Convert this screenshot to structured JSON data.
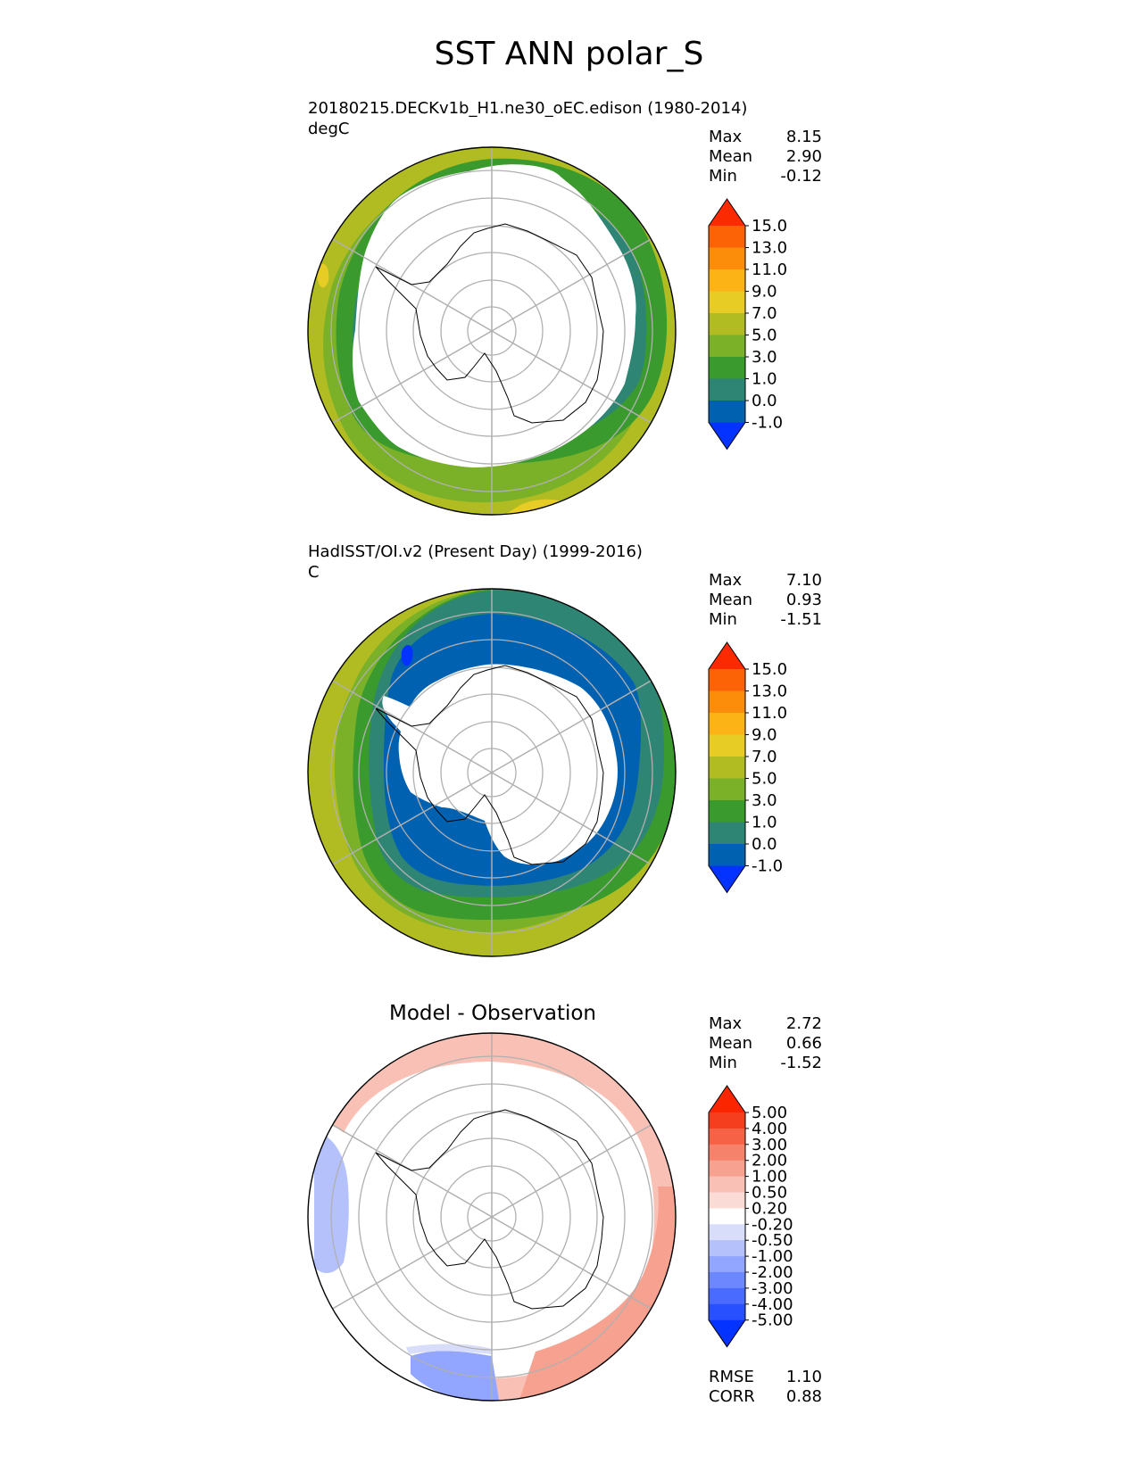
{
  "title": "SST ANN polar_S",
  "panels": [
    {
      "id": "model",
      "title_line1": "20180215.DECKv1b_H1.ne30_oEC.edison (1980-2014)",
      "title_line2": "degC",
      "stats": [
        {
          "label": "Max",
          "value": "8.15"
        },
        {
          "label": "Mean",
          "value": "2.90"
        },
        {
          "label": "Min",
          "value": "-0.12"
        }
      ]
    },
    {
      "id": "obs",
      "title_line1": "HadISST/OI.v2 (Present Day) (1999-2016)",
      "title_line2": "C",
      "stats": [
        {
          "label": "Max",
          "value": "7.10"
        },
        {
          "label": "Mean",
          "value": "0.93"
        },
        {
          "label": "Min",
          "value": "-1.51"
        }
      ]
    },
    {
      "id": "diff",
      "title_center": "Model - Observation",
      "stats": [
        {
          "label": "Max",
          "value": "2.72"
        },
        {
          "label": "Mean",
          "value": "0.66"
        },
        {
          "label": "Min",
          "value": "-1.52"
        }
      ],
      "metrics": [
        {
          "label": "RMSE",
          "value": "1.10"
        },
        {
          "label": "CORR",
          "value": "0.88"
        }
      ]
    }
  ],
  "chart_data": [
    {
      "type": "heatmap",
      "projection": "south polar stereographic",
      "title": "20180215.DECKv1b_H1.ne30_oEC.edison (1980-2014)",
      "units": "degC",
      "colorbar": {
        "levels": [
          -1.0,
          0.0,
          1.0,
          3.0,
          5.0,
          7.0,
          9.0,
          11.0,
          13.0,
          15.0
        ],
        "tick_labels": [
          "-1.0",
          "0.0",
          "1.0",
          "3.0",
          "5.0",
          "7.0",
          "9.0",
          "11.0",
          "13.0",
          "15.0"
        ],
        "colors": [
          "#0433ff",
          "#0061b1",
          "#2f8574",
          "#3b9a2d",
          "#7bb128",
          "#b1bc23",
          "#e8cc26",
          "#fcb315",
          "#fc8d0a",
          "#fc6307",
          "#fc2a00"
        ],
        "extend": "both"
      }
    },
    {
      "type": "heatmap",
      "projection": "south polar stereographic",
      "title": "HadISST/OI.v2 (Present Day) (1999-2016)",
      "units": "C",
      "colorbar": {
        "levels": [
          -1.0,
          0.0,
          1.0,
          3.0,
          5.0,
          7.0,
          9.0,
          11.0,
          13.0,
          15.0
        ],
        "tick_labels": [
          "-1.0",
          "0.0",
          "1.0",
          "3.0",
          "5.0",
          "7.0",
          "9.0",
          "11.0",
          "13.0",
          "15.0"
        ],
        "colors": [
          "#0433ff",
          "#0061b1",
          "#2f8574",
          "#3b9a2d",
          "#7bb128",
          "#b1bc23",
          "#e8cc26",
          "#fcb315",
          "#fc8d0a",
          "#fc6307",
          "#fc2a00"
        ],
        "extend": "both"
      }
    },
    {
      "type": "heatmap",
      "projection": "south polar stereographic",
      "title": "Model - Observation",
      "colorbar": {
        "levels": [
          -5.0,
          -4.0,
          -3.0,
          -2.0,
          -1.0,
          -0.5,
          -0.2,
          0.2,
          0.5,
          1.0,
          2.0,
          3.0,
          4.0,
          5.0
        ],
        "tick_labels": [
          "-5.00",
          "-4.00",
          "-3.00",
          "-2.00",
          "-1.00",
          "-0.50",
          "-0.20",
          "0.20",
          "0.50",
          "1.00",
          "2.00",
          "3.00",
          "4.00",
          "5.00"
        ],
        "colors": [
          "#0433ff",
          "#2850ff",
          "#4a6bff",
          "#6d88ff",
          "#93a6ff",
          "#b4c1fb",
          "#d8ddfa",
          "#ffffff",
          "#fbdbd6",
          "#f9c1b6",
          "#f7a190",
          "#f6826c",
          "#f56245",
          "#f43e1d",
          "#fb2500"
        ],
        "extend": "both"
      }
    }
  ]
}
